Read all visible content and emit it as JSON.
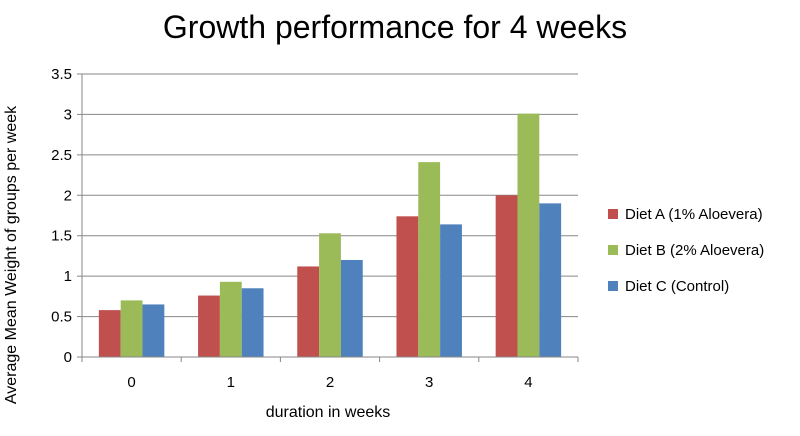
{
  "chart_data": {
    "type": "bar",
    "title": "Growth performance for 4 weeks",
    "xlabel": "duration in weeks",
    "ylabel": "Average Mean Weight of groups per week",
    "categories": [
      "0",
      "1",
      "2",
      "3",
      "4"
    ],
    "ylim": [
      0,
      3.5
    ],
    "yticks": [
      "0",
      "0.5",
      "1",
      "1.5",
      "2",
      "2.5",
      "3",
      "3.5"
    ],
    "grid": true,
    "legend_position": "right",
    "series": [
      {
        "name": "Diet A (1% Aloevera)",
        "color": "#c0504d",
        "values": [
          0.58,
          0.76,
          1.12,
          1.74,
          2.0
        ]
      },
      {
        "name": "Diet B (2% Aloevera)",
        "color": "#9bbb59",
        "values": [
          0.7,
          0.93,
          1.53,
          2.41,
          3.01
        ]
      },
      {
        "name": "Diet C (Control)",
        "color": "#4f81bd",
        "values": [
          0.65,
          0.85,
          1.2,
          1.64,
          1.9
        ]
      }
    ]
  }
}
